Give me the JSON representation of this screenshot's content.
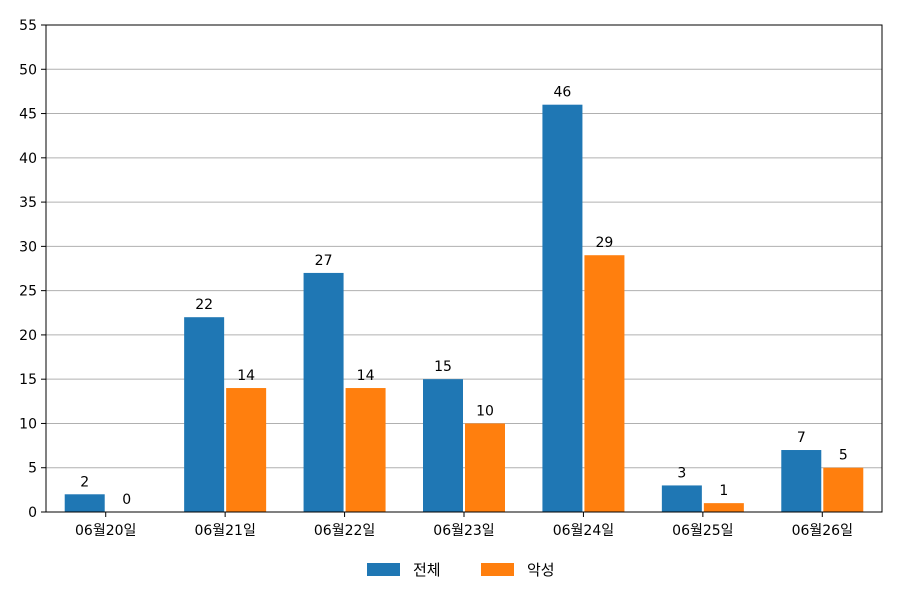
{
  "chart_data": {
    "type": "bar",
    "categories": [
      "06월20일",
      "06월21일",
      "06월22일",
      "06월23일",
      "06월24일",
      "06월25일",
      "06월26일"
    ],
    "series": [
      {
        "name": "전체",
        "color": "#1f77b4",
        "values": [
          2,
          22,
          27,
          15,
          46,
          3,
          7
        ]
      },
      {
        "name": "악성",
        "color": "#ff7f0e",
        "values": [
          0,
          14,
          14,
          10,
          29,
          1,
          5
        ]
      }
    ],
    "ylim": [
      0,
      55
    ],
    "yticks": [
      0,
      5,
      10,
      15,
      20,
      25,
      30,
      35,
      40,
      45,
      50,
      55
    ],
    "grid": "horizontal",
    "legend": "bottom-center",
    "data_labels": true
  }
}
